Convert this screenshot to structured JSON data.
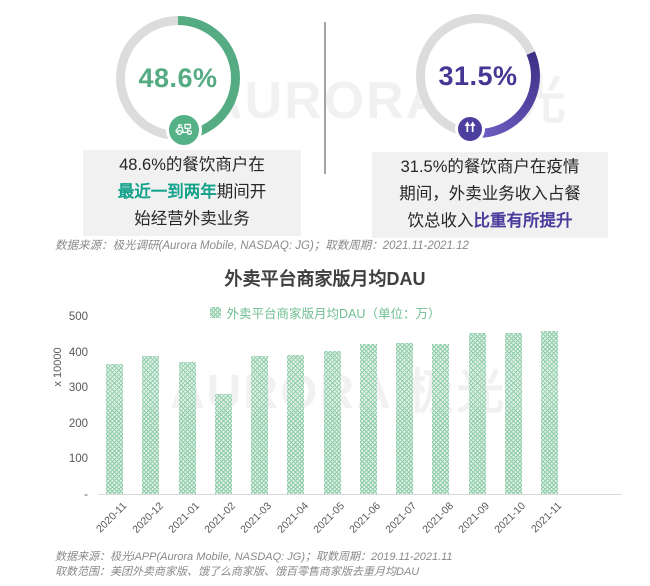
{
  "watermark": "AURORA 极光",
  "colors": {
    "green_accent": "#55ab82",
    "green_badge": "#55b286",
    "teal_highlight": "#12a18a",
    "purple_accent": "#463795",
    "purple_dark": "#3d2e85",
    "purple_light": "#6f5fc4",
    "purple_highlight": "#4b3b9c",
    "ring_track": "#dcdcdc",
    "bar_green": "#8fcdaa",
    "legend_green": "#6fbe92"
  },
  "stats": {
    "left": {
      "value": 48.6,
      "percent_label": "48.6%",
      "icon": "delivery-scooter-icon",
      "lines": [
        {
          "pre": "48.6%的餐饮商户在",
          "hl": "",
          "suf": ""
        },
        {
          "pre": "",
          "hl": "最近一到两年",
          "suf": "期间开"
        },
        {
          "pre": "始经营外卖业务",
          "hl": "",
          "suf": ""
        }
      ]
    },
    "right": {
      "value": 31.5,
      "percent_label": "31.5%",
      "icon": "double-up-arrow-icon",
      "lines": [
        {
          "pre": "31.5%的餐饮商户在疫情",
          "hl": "",
          "suf": ""
        },
        {
          "pre": "期间，外卖业务收入占餐",
          "hl": "",
          "suf": ""
        },
        {
          "pre": "饮总收入",
          "hl": "比重有所提升",
          "suf": ""
        }
      ]
    }
  },
  "survey_source": "数据来源：极光调研(Aurora Mobile, NASDAQ: JG)；取数周期：2021.11-2021.12",
  "chart_data": {
    "type": "bar",
    "title": "外卖平台商家版月均DAU",
    "legend": "外卖平台商家版月均DAU（单位：万）",
    "y_unit_label": "x 10000",
    "categories": [
      "2020-11",
      "2020-12",
      "2021-01",
      "2021-02",
      "2021-03",
      "2021-04",
      "2021-05",
      "2021-06",
      "2021-07",
      "2021-08",
      "2021-09",
      "2021-10",
      "2021-11"
    ],
    "values": [
      366,
      389,
      371,
      280,
      387,
      390,
      402,
      421,
      423,
      420,
      452,
      451,
      457
    ],
    "ylim": [
      0,
      500
    ],
    "yticks": [
      "500",
      "400",
      "300",
      "200",
      "100",
      "-"
    ],
    "grid": false,
    "legend_position": "top-center"
  },
  "footer": {
    "line1": "数据来源：极光iAPP(Aurora Mobile, NASDAQ: JG)；取数周期：2019.11-2021.11",
    "line2": "取数范围：美团外卖商家版、饿了么商家版、饿百零售商家版去重月均DAU"
  }
}
